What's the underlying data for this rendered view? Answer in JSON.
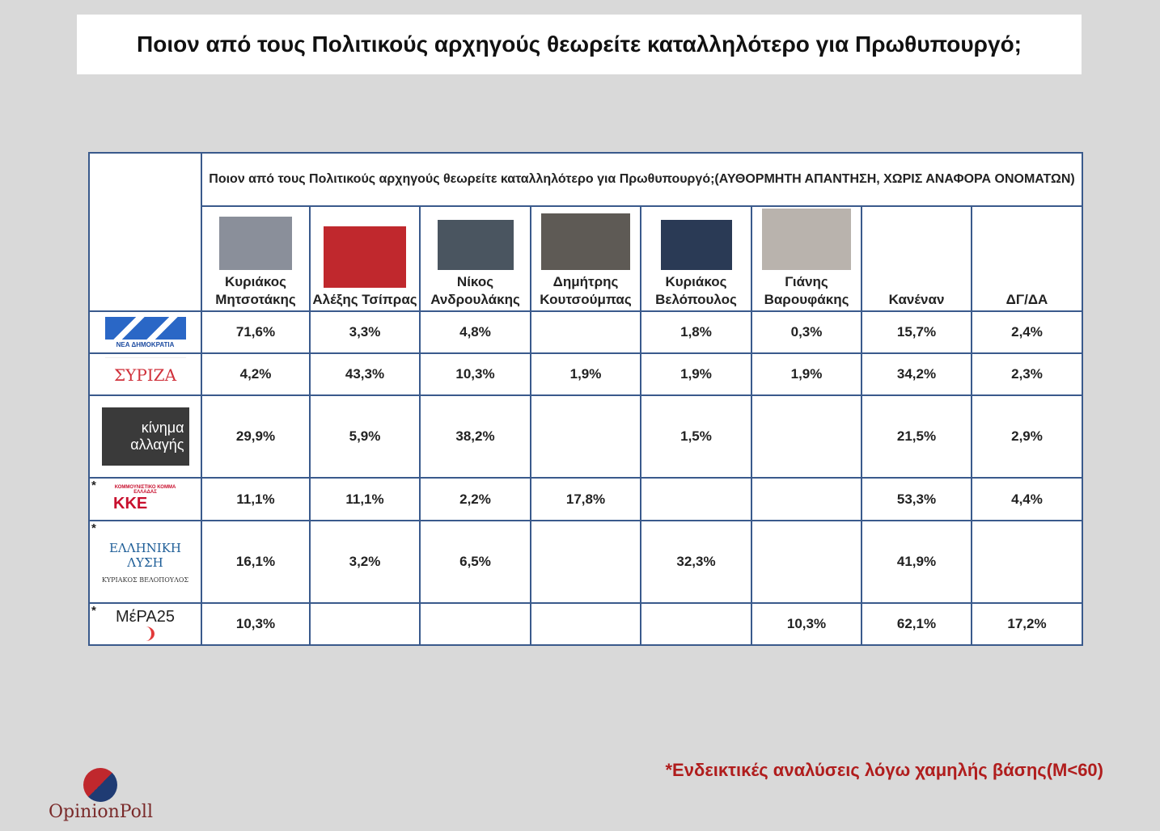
{
  "title": "Ποιον από τους Πολιτικούς αρχηγούς θεωρείτε καταλληλότερο για Πρωθυπουργό;",
  "table": {
    "header": "Ποιον από τους Πολιτικούς αρχηγούς θεωρείτε καταλληλότερο για Πρωθυπουργό;(ΑΥΘΟΡΜΗΤΗ ΑΠΑΝΤΗΣΗ, ΧΩΡΙΣ ΑΝΑΦΟΡΑ ΟΝΟΜΑΤΩΝ)",
    "columns": [
      "Κυριάκος Μητσοτάκης",
      "Αλέξης Τσίπρας",
      "Νίκος Ανδρουλάκης",
      "Δημήτρης Κουτσούμπας",
      "Κυριάκος Βελόπουλος",
      "Γιάνης Βαρουφάκης",
      "Κανέναν",
      "ΔΓ/ΔΑ"
    ],
    "rows": [
      {
        "logo": [
          "ΝΕΑ ΔΗΜΟΚΡΑΤΙΑ"
        ],
        "cells": [
          "71,6%",
          "3,3%",
          "4,8%",
          null,
          "1,8%",
          "0,3%",
          "15,7%",
          "2,4%"
        ]
      },
      {
        "logo": [
          "ΣΥΡΙΖΑ"
        ],
        "cells": [
          "4,2%",
          "43,3%",
          "10,3%",
          "1,9%",
          "1,9%",
          "1,9%",
          "34,2%",
          "2,3%"
        ]
      },
      {
        "logo": [
          "κίνημα",
          "αλλαγής"
        ],
        "cells": [
          "29,9%",
          "5,9%",
          "38,2%",
          null,
          "1,5%",
          null,
          "21,5%",
          "2,9%"
        ]
      },
      {
        "note": "*",
        "logo": [
          "ΚΟΜΜΟΥΝΙΣΤΙΚΟ ΚΟΜΜΑ ΕΛΛΑΔΑΣ",
          "ΚΚΕ"
        ],
        "cells": [
          "11,1%",
          "11,1%",
          "2,2%",
          "17,8%",
          null,
          null,
          "53,3%",
          "4,4%"
        ]
      },
      {
        "note": "*",
        "logo": [
          "ΕΛΛΗΝΙΚΗ",
          "ΛΥΣΗ",
          "ΚΥΡΙΑΚΟΣ ΒΕΛΟΠΟΥΛΟΣ"
        ],
        "cells": [
          "16,1%",
          "3,2%",
          "6,5%",
          null,
          "32,3%",
          null,
          "41,9%",
          null
        ]
      },
      {
        "note": "*",
        "logo": [
          "ΜέΡΑ25"
        ],
        "cells": [
          "10,3%",
          null,
          null,
          null,
          null,
          "10,3%",
          "62,1%",
          "17,2%"
        ]
      }
    ]
  },
  "footnote": "*Ενδεικτικές αναλύσεις λόγω χαμηλής βάσης(Μ<60)",
  "brand": "OpinionPoll"
}
